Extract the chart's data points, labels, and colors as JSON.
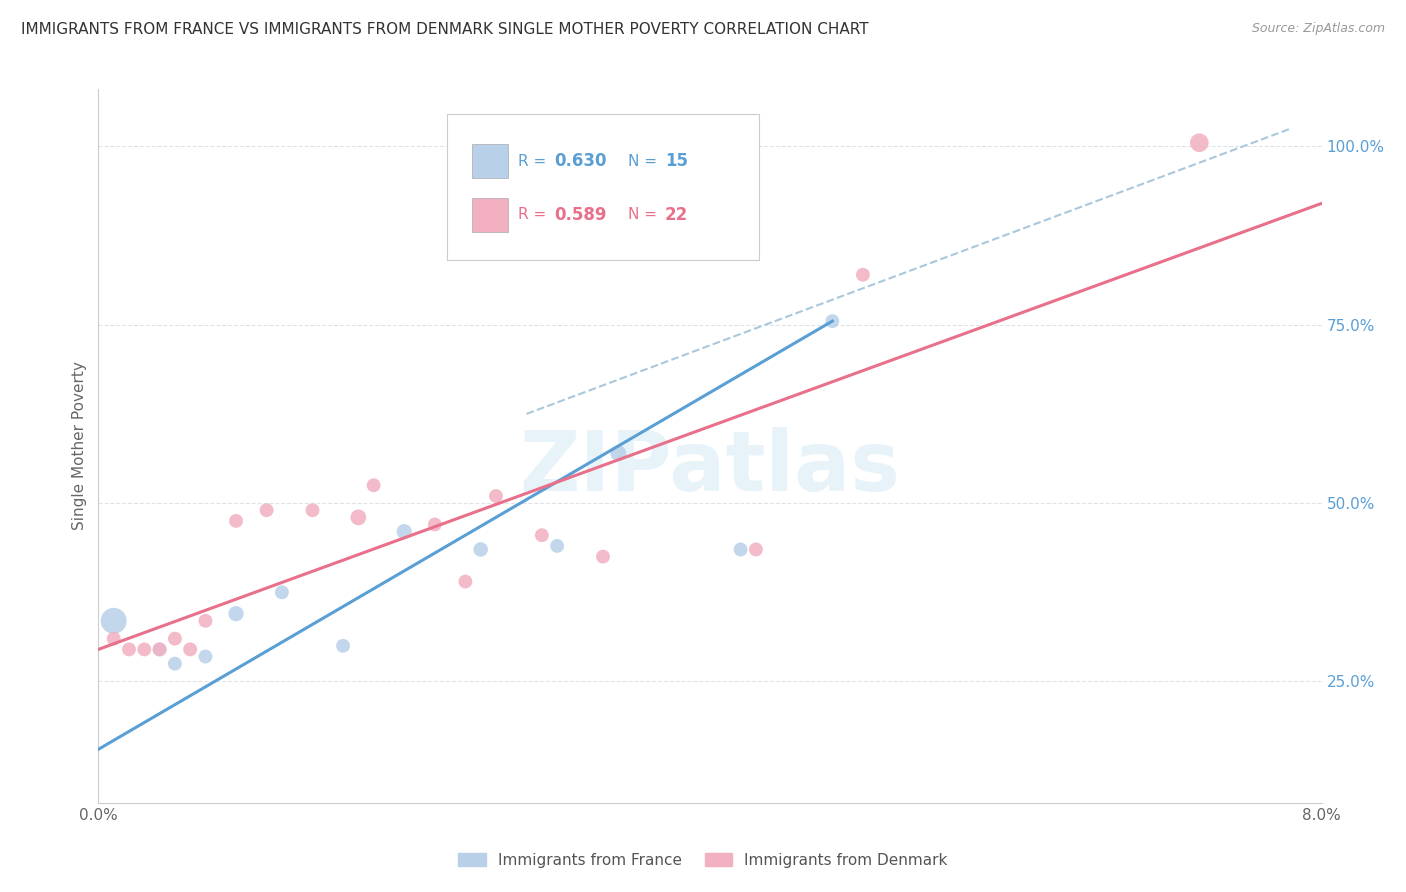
{
  "title": "IMMIGRANTS FROM FRANCE VS IMMIGRANTS FROM DENMARK SINGLE MOTHER POVERTY CORRELATION CHART",
  "source": "Source: ZipAtlas.com",
  "ylabel": "Single Mother Poverty",
  "legend_label_1": "Immigrants from France",
  "legend_label_2": "Immigrants from Denmark",
  "xlim": [
    0.0,
    0.08
  ],
  "ylim": [
    0.08,
    1.08
  ],
  "xticks": [
    0.0,
    0.01,
    0.02,
    0.03,
    0.04,
    0.05,
    0.06,
    0.07,
    0.08
  ],
  "ytick_labels_right": [
    "25.0%",
    "50.0%",
    "75.0%",
    "100.0%"
  ],
  "ytick_values_right": [
    0.25,
    0.5,
    0.75,
    1.0
  ],
  "france_color": "#b8d0e8",
  "denmark_color": "#f2b0c0",
  "france_line_color": "#5a9fd4",
  "denmark_line_color": "#e8708a",
  "ref_line_color": "#aac8dc",
  "background_color": "#ffffff",
  "france_x": [
    0.001,
    0.004,
    0.005,
    0.007,
    0.009,
    0.012,
    0.016,
    0.02,
    0.025,
    0.03,
    0.034,
    0.042,
    0.048
  ],
  "france_y": [
    0.335,
    0.295,
    0.275,
    0.285,
    0.345,
    0.375,
    0.3,
    0.46,
    0.435,
    0.44,
    0.57,
    0.435,
    0.755
  ],
  "france_size": [
    350,
    100,
    100,
    100,
    120,
    100,
    100,
    120,
    110,
    100,
    130,
    100,
    100
  ],
  "denmark_x": [
    0.001,
    0.002,
    0.003,
    0.004,
    0.005,
    0.006,
    0.007,
    0.009,
    0.011,
    0.014,
    0.017,
    0.018,
    0.022,
    0.024,
    0.026,
    0.029,
    0.033,
    0.043,
    0.05,
    0.072
  ],
  "denmark_y": [
    0.31,
    0.295,
    0.295,
    0.295,
    0.31,
    0.295,
    0.335,
    0.475,
    0.49,
    0.49,
    0.48,
    0.525,
    0.47,
    0.39,
    0.51,
    0.455,
    0.425,
    0.435,
    0.82,
    1.005
  ],
  "denmark_size": [
    100,
    100,
    100,
    100,
    100,
    100,
    100,
    100,
    100,
    100,
    130,
    100,
    100,
    100,
    100,
    100,
    100,
    100,
    100,
    180
  ],
  "france_line_x": [
    0.0,
    0.048
  ],
  "france_line_y": [
    0.155,
    0.755
  ],
  "denmark_line_x": [
    0.0,
    0.08
  ],
  "denmark_line_y": [
    0.295,
    0.92
  ],
  "ref_line_x": [
    0.028,
    0.078
  ],
  "ref_line_y": [
    0.625,
    1.025
  ],
  "grid_color": "#e0e4e8",
  "right_axis_color": "#5a9fd4",
  "watermark": "ZIPatlas",
  "watermark_color": "#d8ecf5"
}
